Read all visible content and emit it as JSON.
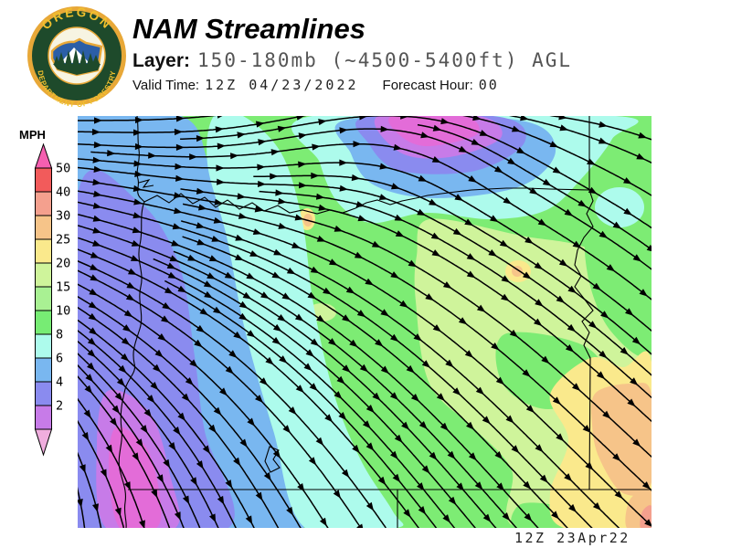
{
  "header": {
    "title": "NAM Streamlines",
    "layer_label": "Layer:",
    "layer_value": "150-180mb (~4500-5400ft) AGL",
    "valid_time_label": "Valid Time:",
    "valid_time_value": "12Z 04/23/2022",
    "forecast_hour_label": "Forecast Hour:",
    "forecast_hour_value": "00"
  },
  "logo": {
    "top_text": "OREGON",
    "bottom_text": "DEPARTMENT OF FORESTRY",
    "ring_color": "#1e4a2b",
    "gold_color": "#e8a838",
    "state_color": "#2b5ea7"
  },
  "legend": {
    "units_label": "MPH",
    "ticks": [
      "50",
      "40",
      "30",
      "25",
      "20",
      "15",
      "10",
      "8",
      "6",
      "4",
      "2"
    ],
    "segment_colors": [
      "#f25b5b",
      "#f4a08e",
      "#f6c489",
      "#fae98c",
      "#cff49b",
      "#a9f193",
      "#77ec74",
      "#adfbec",
      "#79b7f0",
      "#8a8bef",
      "#c77be8"
    ],
    "arrow_top_color": "#f55fb0",
    "arrow_bottom_color": "#f0aede"
  },
  "map": {
    "timestamp": "12Z 23Apr22",
    "stream_color": "#000000",
    "border_color": "#000000",
    "palette": {
      "green": "#7dec74",
      "light_green": "#a9f193",
      "pale_yellow_green": "#cff49b",
      "yellow": "#fae98c",
      "peach": "#f6c489",
      "salmon": "#f4a08e",
      "cyan": "#adfbec",
      "sky_blue": "#79b7f0",
      "periwinkle": "#8a8bef",
      "orchid": "#c77be8",
      "magenta": "#e36cd8"
    }
  }
}
